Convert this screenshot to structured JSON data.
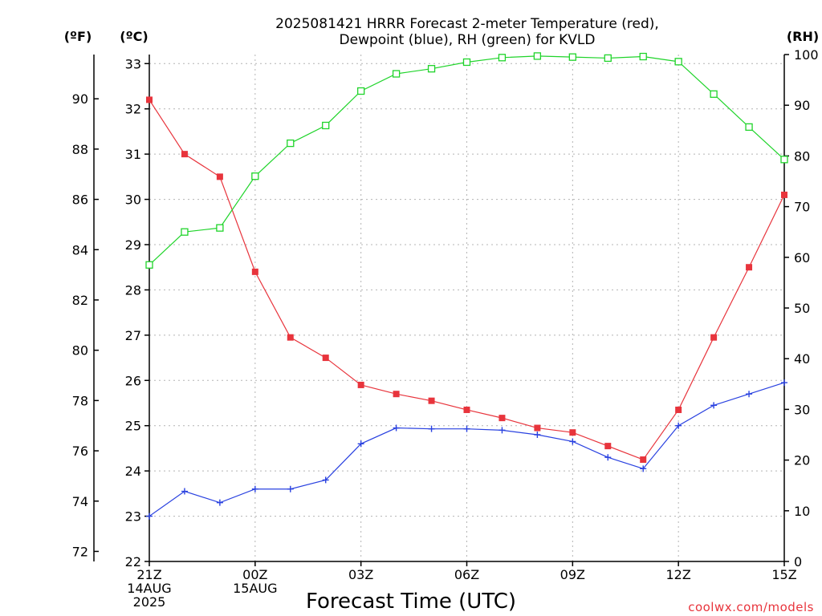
{
  "chart_data": {
    "type": "line",
    "title_line1": "2025081421 HRRR Forecast 2-meter Temperature (red),",
    "title_line2": "Dewpoint (blue), RH (green) for KVLD",
    "xlabel": "Forecast Time (UTC)",
    "unit_f": "(ºF)",
    "unit_c": "(ºC)",
    "unit_rh": "(RH)",
    "credit": "coolwx.com/models",
    "x_hours": [
      0,
      1,
      2,
      3,
      4,
      5,
      6,
      7,
      8,
      9,
      10,
      11,
      12,
      13,
      14,
      15,
      16,
      17,
      18
    ],
    "x_ticks": [
      {
        "hour": 0,
        "lines": [
          "21Z",
          "14AUG",
          "2025"
        ]
      },
      {
        "hour": 3,
        "lines": [
          "00Z",
          "15AUG"
        ]
      },
      {
        "hour": 6,
        "lines": [
          "03Z"
        ]
      },
      {
        "hour": 9,
        "lines": [
          "06Z"
        ]
      },
      {
        "hour": 12,
        "lines": [
          "09Z"
        ]
      },
      {
        "hour": 15,
        "lines": [
          "12Z"
        ]
      },
      {
        "hour": 18,
        "lines": [
          "15Z"
        ]
      }
    ],
    "c_ticks": [
      22,
      23,
      24,
      25,
      26,
      27,
      28,
      29,
      30,
      31,
      32,
      33
    ],
    "f_ticks": [
      72,
      74,
      76,
      78,
      80,
      82,
      84,
      86,
      88,
      90
    ],
    "rh_ticks": [
      0,
      10,
      20,
      30,
      40,
      50,
      60,
      70,
      80,
      90,
      100
    ],
    "ylim_c": [
      22,
      33.2
    ],
    "ylim_rh": [
      0,
      100
    ],
    "grid": true,
    "series": [
      {
        "name": "Temperature",
        "color": "#e8343c",
        "marker": "filled-square",
        "unit": "C",
        "values": [
          32.2,
          31.0,
          30.5,
          28.4,
          26.95,
          26.5,
          25.9,
          25.7,
          25.55,
          25.35,
          25.17,
          24.95,
          24.85,
          24.55,
          24.25,
          25.35,
          26.95,
          28.5,
          30.1
        ]
      },
      {
        "name": "Dewpoint",
        "color": "#2941e0",
        "marker": "plus",
        "unit": "C",
        "values": [
          23.0,
          23.55,
          23.3,
          23.6,
          23.6,
          23.8,
          24.6,
          24.95,
          24.93,
          24.93,
          24.9,
          24.8,
          24.65,
          24.3,
          24.05,
          25.0,
          25.45,
          25.7,
          25.95
        ]
      },
      {
        "name": "RH",
        "color": "#1fd42a",
        "marker": "open-square",
        "unit": "%",
        "values": [
          58.5,
          65,
          65.8,
          76,
          82.5,
          86,
          92.8,
          96.2,
          97.2,
          98.5,
          99.4,
          99.7,
          99.5,
          99.3,
          99.6,
          98.6,
          92.2,
          85.7,
          79.3
        ]
      }
    ]
  }
}
